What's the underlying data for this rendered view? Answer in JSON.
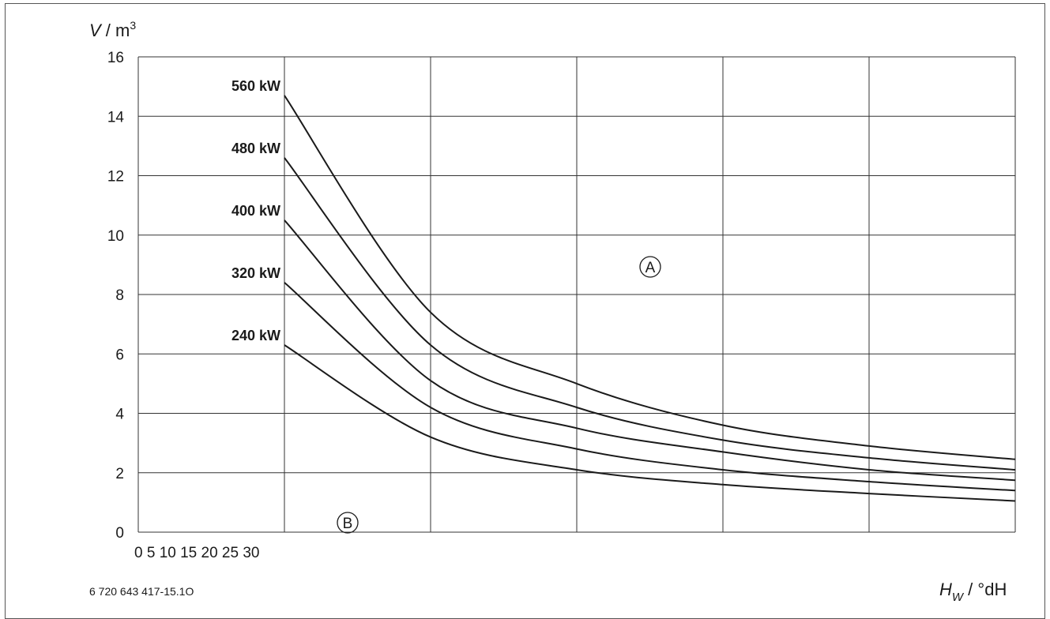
{
  "chart_data": {
    "type": "line",
    "ylabel": {
      "var": "V",
      "sep": " / ",
      "unit": "m",
      "sup": "3"
    },
    "xlabel": {
      "var": "H",
      "sub": "W",
      "sep": " / ",
      "unit": "°dH"
    },
    "ylim": [
      0,
      16
    ],
    "y_ticks": [
      "0",
      "2",
      "4",
      "6",
      "8",
      "10",
      "12",
      "14",
      "16"
    ],
    "x_tick_text": "0 5 10 15 20 25 30",
    "grid": true,
    "regions": [
      {
        "label": "A"
      },
      {
        "label": "B"
      }
    ],
    "series": [
      {
        "name": "560 kW",
        "points": [
          [
            30,
            14.7
          ],
          [
            31,
            7.4
          ],
          [
            32,
            5.0
          ],
          [
            33,
            3.6
          ],
          [
            34,
            2.9
          ],
          [
            35,
            2.45
          ]
        ]
      },
      {
        "name": "480 kW",
        "points": [
          [
            30,
            12.6
          ],
          [
            31,
            6.3
          ],
          [
            32,
            4.2
          ],
          [
            33,
            3.1
          ],
          [
            34,
            2.5
          ],
          [
            35,
            2.1
          ]
        ]
      },
      {
        "name": "400 kW",
        "points": [
          [
            30,
            10.5
          ],
          [
            31,
            5.1
          ],
          [
            32,
            3.5
          ],
          [
            33,
            2.7
          ],
          [
            34,
            2.1
          ],
          [
            35,
            1.75
          ]
        ]
      },
      {
        "name": "320 kW",
        "points": [
          [
            30,
            8.4
          ],
          [
            31,
            4.2
          ],
          [
            32,
            2.8
          ],
          [
            33,
            2.1
          ],
          [
            34,
            1.7
          ],
          [
            35,
            1.4
          ]
        ]
      },
      {
        "name": "240 kW",
        "points": [
          [
            30,
            6.3
          ],
          [
            31,
            3.2
          ],
          [
            32,
            2.1
          ],
          [
            33,
            1.6
          ],
          [
            34,
            1.3
          ],
          [
            35,
            1.05
          ]
        ]
      }
    ]
  },
  "footnote": "6 720 643 417-15.1O"
}
